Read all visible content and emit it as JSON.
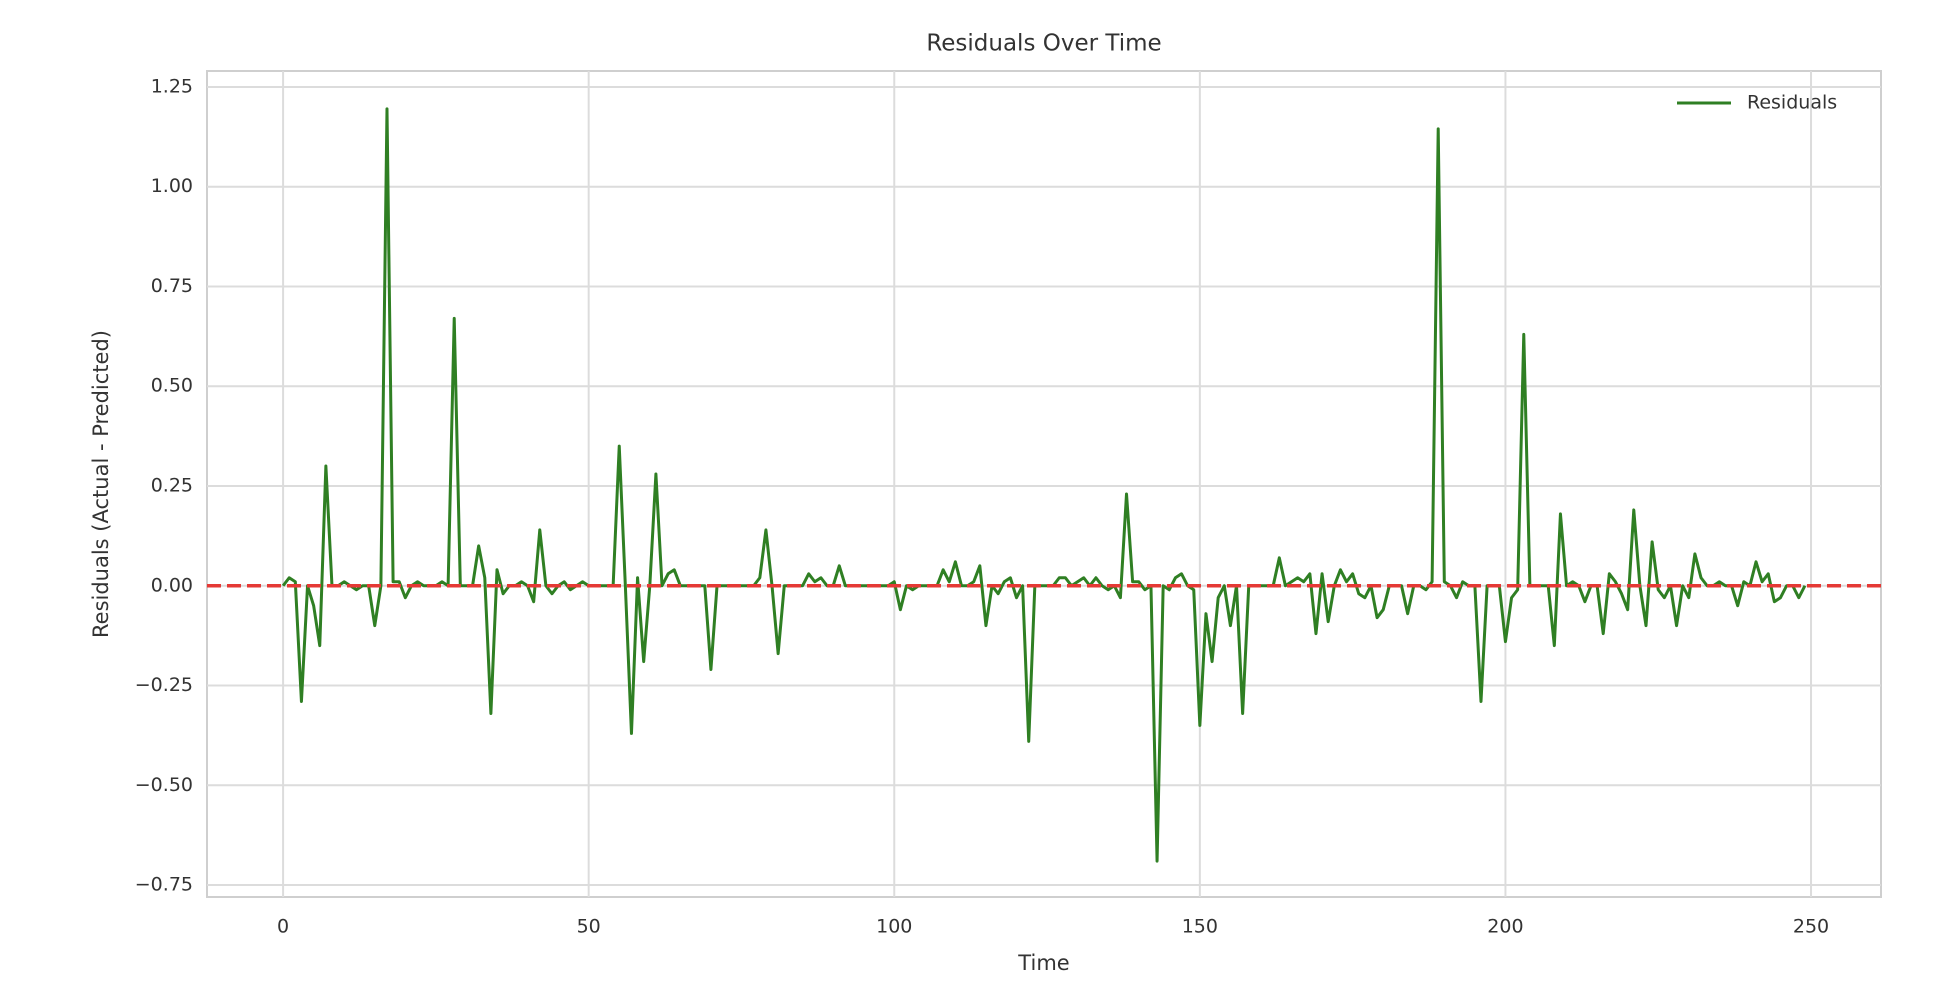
{
  "chart_data": {
    "type": "line",
    "title": "Residuals Over Time",
    "x_label": "Time",
    "y_label": "Residuals (Actual - Predicted)",
    "x": [
      0,
      1,
      2,
      3,
      4,
      5,
      6,
      7,
      8,
      9,
      10,
      11,
      12,
      13,
      14,
      15,
      16,
      17,
      18,
      19,
      20,
      21,
      22,
      23,
      24,
      25,
      26,
      27,
      28,
      29,
      30,
      31,
      32,
      33,
      34,
      35,
      36,
      37,
      38,
      39,
      40,
      41,
      42,
      43,
      44,
      45,
      46,
      47,
      48,
      49,
      50,
      51,
      52,
      53,
      54,
      55,
      56,
      57,
      58,
      59,
      60,
      61,
      62,
      63,
      64,
      65,
      66,
      67,
      68,
      69,
      70,
      71,
      72,
      73,
      74,
      75,
      76,
      77,
      78,
      79,
      80,
      81,
      82,
      83,
      84,
      85,
      86,
      87,
      88,
      89,
      90,
      91,
      92,
      93,
      94,
      95,
      96,
      97,
      98,
      99,
      100,
      101,
      102,
      103,
      104,
      105,
      106,
      107,
      108,
      109,
      110,
      111,
      112,
      113,
      114,
      115,
      116,
      117,
      118,
      119,
      120,
      121,
      122,
      123,
      124,
      125,
      126,
      127,
      128,
      129,
      130,
      131,
      132,
      133,
      134,
      135,
      136,
      137,
      138,
      139,
      140,
      141,
      142,
      143,
      144,
      145,
      146,
      147,
      148,
      149,
      150,
      151,
      152,
      153,
      154,
      155,
      156,
      157,
      158,
      159,
      160,
      161,
      162,
      163,
      164,
      165,
      166,
      167,
      168,
      169,
      170,
      171,
      172,
      173,
      174,
      175,
      176,
      177,
      178,
      179,
      180,
      181,
      182,
      183,
      184,
      185,
      186,
      187,
      188,
      189,
      190,
      191,
      192,
      193,
      194,
      195,
      196,
      197,
      198,
      199,
      200,
      201,
      202,
      203,
      204,
      205,
      206,
      207,
      208,
      209,
      210,
      211,
      212,
      213,
      214,
      215,
      216,
      217,
      218,
      219,
      220,
      221,
      222,
      223,
      224,
      225,
      226,
      227,
      228,
      229,
      230,
      231,
      232,
      233,
      234,
      235,
      236,
      237,
      238,
      239,
      240,
      241,
      242,
      243,
      244,
      245,
      246,
      247,
      248,
      249
    ],
    "series": [
      {
        "name": "Residuals",
        "color": "#2f7f23",
        "values": [
          0,
          0.02,
          0.01,
          -0.29,
          0,
          -0.05,
          -0.15,
          0.3,
          0,
          0,
          0.01,
          0,
          -0.01,
          0,
          0,
          -0.1,
          0,
          1.195,
          0.01,
          0.01,
          -0.03,
          0,
          0.01,
          0,
          0,
          0,
          0.01,
          0,
          0.67,
          0,
          0,
          0,
          0.1,
          0.02,
          -0.32,
          0.04,
          -0.02,
          0,
          0,
          0.01,
          0,
          -0.04,
          0.14,
          0,
          -0.02,
          0,
          0.01,
          -0.01,
          0,
          0.01,
          0,
          0,
          0,
          0,
          0,
          0.35,
          0,
          -0.37,
          0.02,
          -0.19,
          0,
          0.28,
          0,
          0.03,
          0.04,
          0,
          0,
          0,
          0,
          0,
          -0.21,
          0,
          0,
          0,
          0,
          0,
          0,
          0,
          0.02,
          0.14,
          0,
          -0.17,
          0,
          0,
          0,
          0,
          0.03,
          0.01,
          0.02,
          0,
          0,
          0.05,
          0,
          0,
          0,
          0,
          0,
          0,
          0,
          0,
          0.01,
          -0.06,
          0,
          -0.01,
          0,
          0,
          0,
          0,
          0.04,
          0.01,
          0.06,
          0,
          0,
          0.01,
          0.05,
          -0.1,
          0,
          -0.02,
          0.01,
          0.02,
          -0.03,
          0,
          -0.39,
          0,
          0,
          0,
          0,
          0.02,
          0.02,
          0,
          0.01,
          0.02,
          0,
          0.02,
          0,
          -0.01,
          0,
          -0.03,
          0.23,
          0.01,
          0.01,
          -0.01,
          0,
          -0.69,
          0,
          -0.01,
          0.02,
          0.03,
          0,
          -0.01,
          -0.35,
          -0.07,
          -0.19,
          -0.03,
          0,
          -0.1,
          0,
          -0.32,
          0,
          0,
          0,
          0,
          0,
          0.07,
          0,
          0.01,
          0.02,
          0.01,
          0.03,
          -0.12,
          0.03,
          -0.09,
          0,
          0.04,
          0.01,
          0.03,
          -0.02,
          -0.03,
          0,
          -0.08,
          -0.06,
          0,
          0,
          0,
          -0.07,
          0,
          0,
          -0.01,
          0.01,
          1.145,
          0.01,
          0,
          -0.03,
          0.01,
          0,
          0,
          -0.29,
          0,
          0,
          0,
          -0.14,
          -0.03,
          -0.01,
          0.63,
          0,
          0,
          0,
          0,
          -0.15,
          0.18,
          0,
          0.01,
          0,
          -0.04,
          0,
          0,
          -0.12,
          0.03,
          0.01,
          -0.02,
          -0.06,
          0.19,
          0,
          -0.1,
          0.11,
          -0.01,
          -0.03,
          0,
          -0.1,
          0,
          -0.03,
          0.08,
          0.02,
          0,
          0,
          0.01,
          0,
          0,
          -0.05,
          0.01,
          0,
          0.06,
          0.01,
          0.03,
          -0.04,
          -0.03,
          0,
          0,
          -0.03,
          0
        ]
      }
    ],
    "hline": 0,
    "hline_color": "#e53935",
    "xlim": [
      -12.45,
      261.45
    ],
    "xticks": [
      0,
      50,
      100,
      150,
      200,
      250
    ],
    "ylim": [
      -0.78,
      1.29
    ],
    "yticks": [
      {
        "value": -0.75,
        "label": "−0.75"
      },
      {
        "value": -0.5,
        "label": "−0.50"
      },
      {
        "value": -0.25,
        "label": "−0.25"
      },
      {
        "value": 0,
        "label": "0.00"
      },
      0.25,
      {
        "value": 0.5,
        "label": "0.50"
      },
      0.75,
      {
        "value": 1,
        "label": "1.00"
      },
      1.25
    ],
    "grid": true,
    "legend": "upper right"
  }
}
